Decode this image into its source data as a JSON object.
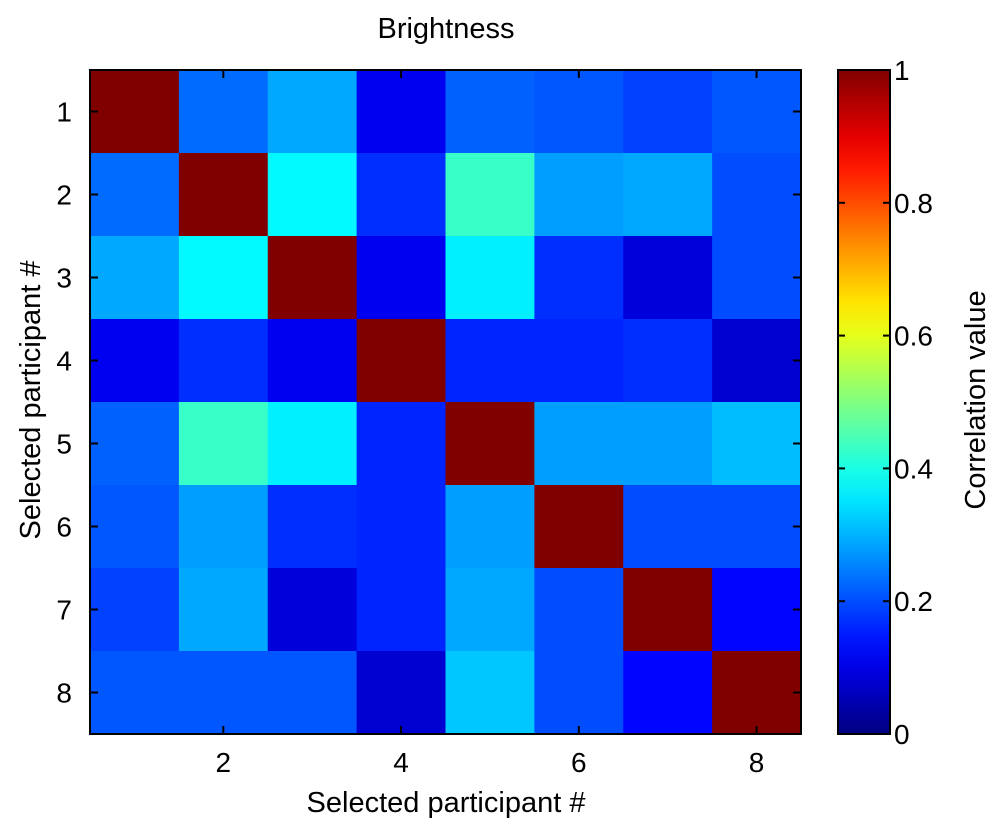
{
  "chart_data": {
    "type": "heatmap",
    "title": "Brightness",
    "xlabel": "Selected participant #",
    "ylabel": "Selected participant #",
    "colorbar_label": "Correlation value",
    "x_categories": [
      1,
      2,
      3,
      4,
      5,
      6,
      7,
      8
    ],
    "y_categories": [
      1,
      2,
      3,
      4,
      5,
      6,
      7,
      8
    ],
    "x_tick_labels": [
      "2",
      "4",
      "6",
      "8"
    ],
    "y_tick_labels": [
      "1",
      "2",
      "3",
      "4",
      "5",
      "6",
      "7",
      "8"
    ],
    "colorbar_range": [
      0,
      1
    ],
    "colorbar_ticks": [
      "0",
      "0.2",
      "0.4",
      "0.6",
      "0.8",
      "1"
    ],
    "colormap": "jet",
    "values": [
      [
        1.0,
        0.23,
        0.29,
        0.11,
        0.22,
        0.21,
        0.19,
        0.21
      ],
      [
        0.23,
        1.0,
        0.37,
        0.17,
        0.43,
        0.28,
        0.29,
        0.2
      ],
      [
        0.29,
        0.37,
        1.0,
        0.11,
        0.36,
        0.17,
        0.09,
        0.2
      ],
      [
        0.11,
        0.17,
        0.11,
        1.0,
        0.16,
        0.16,
        0.17,
        0.08
      ],
      [
        0.22,
        0.43,
        0.36,
        0.16,
        1.0,
        0.28,
        0.28,
        0.31
      ],
      [
        0.21,
        0.28,
        0.17,
        0.16,
        0.28,
        1.0,
        0.2,
        0.2
      ],
      [
        0.19,
        0.29,
        0.09,
        0.16,
        0.29,
        0.2,
        1.0,
        0.13
      ],
      [
        0.21,
        0.21,
        0.21,
        0.08,
        0.32,
        0.2,
        0.13,
        1.0
      ]
    ]
  }
}
